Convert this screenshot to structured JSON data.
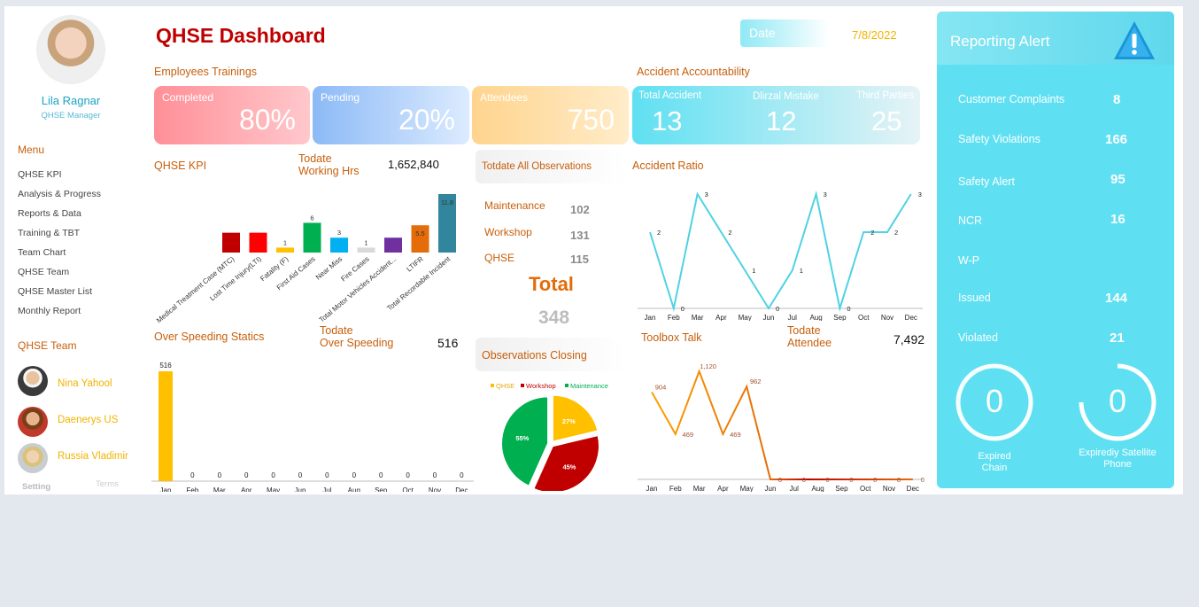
{
  "header": {
    "title": "QHSE Dashboard",
    "date_label": "Date",
    "date_value": "7/8/2022"
  },
  "user": {
    "name": "Lila Ragnar",
    "role": "QHSE Manager"
  },
  "menu": {
    "title": "Menu",
    "items": [
      "QHSE KPI",
      "Analysis & Progress",
      "Reports & Data",
      "Training & TBT",
      "Team Chart",
      "QHSE Team",
      "QHSE Master List",
      "Monthly Report"
    ]
  },
  "team": {
    "title": "QHSE Team",
    "members": [
      "Nina Yahool",
      "Daenerys US",
      "Russia  Vladimir"
    ]
  },
  "footer": {
    "setting": "Setting",
    "terms": "Terms"
  },
  "trainings": {
    "title": "Employees Trainings",
    "completed_label": "Completed",
    "completed_value": "80%",
    "pending_label": "Pending",
    "pending_value": "20%",
    "attendees_label": "Attendees",
    "attendees_value": "750"
  },
  "accident": {
    "title": "Accident Accountability",
    "total_label": "Total Accident",
    "total_value": "13",
    "mistake_label": "Dlirzal Mistake",
    "mistake_value": "12",
    "third_label": "Third Parties",
    "third_value": "25"
  },
  "kpi": {
    "title": "QHSE KPI",
    "working_label_1": "Todate",
    "working_label_2": "Working Hrs",
    "working_value": "1,652,840"
  },
  "observations": {
    "title": "Totdate All Observations",
    "rows": [
      {
        "label": "Maintenance",
        "value": "102"
      },
      {
        "label": "Workshop",
        "value": "131"
      },
      {
        "label": "QHSE",
        "value": "115"
      }
    ],
    "total_label": "Total",
    "total_value": "348",
    "closing_title": "Observations Closing"
  },
  "accident_ratio": {
    "title": "Accident Ratio"
  },
  "speeding": {
    "title": "Over Speeding Statics",
    "todate_label_1": "Todate",
    "todate_label_2": "Over Speeding",
    "todate_value": "516"
  },
  "toolbox": {
    "title": "Toolbox Talk",
    "todate_label_1": "Todate",
    "todate_label_2": "Attendee",
    "todate_value": "7,492"
  },
  "alerts": {
    "title": "Reporting Alert",
    "rows": [
      {
        "label": "Customer Complaints",
        "value": "8"
      },
      {
        "label": "Safety Violations",
        "value": "166"
      },
      {
        "label": "Safety Alert",
        "value": "95"
      },
      {
        "label": "NCR",
        "value": "16"
      },
      {
        "label": "W-P",
        "value": ""
      },
      {
        "label": "Issued",
        "value": "144"
      },
      {
        "label": "Violated",
        "value": "21"
      }
    ],
    "gauge1_value": "0",
    "gauge1_label_1": "Expired",
    "gauge1_label_2": "Chain",
    "gauge2_value": "0",
    "gauge2_label_1": "Expirediy Satellite",
    "gauge2_label_2": "Phone"
  },
  "chart_data": [
    {
      "type": "bar",
      "name": "QHSE KPI",
      "categories": [
        "Medical Treatment Case (MTC)",
        "Lost Time Injury(LTI)",
        "Fatality (F)",
        "First Aid Cases",
        "Near Miss",
        "Fire Cases",
        "Total Motor Vehicles Accident...",
        "LTIFR",
        "Total Recordable Incident"
      ],
      "values": [
        4,
        4,
        1,
        6,
        3,
        1,
        3,
        5.5,
        11.8
      ],
      "labels": [
        "",
        "",
        "1",
        "6",
        "3",
        "1",
        "",
        "5.5",
        "11.8"
      ],
      "colors": [
        "#c00000",
        "#ff0000",
        "#ffc000",
        "#00b050",
        "#00b0f0",
        "#d9d9d9",
        "#7030a0",
        "#e46c0a",
        "#31859c"
      ]
    },
    {
      "type": "line",
      "name": "Accident Ratio",
      "categories": [
        "Jan",
        "Feb",
        "Mar",
        "Apr",
        "May",
        "Jun",
        "Jul",
        "Aug",
        "Sep",
        "Oct",
        "Nov",
        "Dec"
      ],
      "values": [
        2,
        0,
        3,
        2,
        1,
        0,
        1,
        3,
        0,
        2,
        2,
        3
      ],
      "ylim": [
        0,
        3
      ]
    },
    {
      "type": "bar",
      "name": "Over Speeding Statics",
      "categories": [
        "Jan",
        "Feb",
        "Mar",
        "Apr",
        "May",
        "Jun",
        "Jul",
        "Aug",
        "Sep",
        "Oct",
        "Nov",
        "Dec"
      ],
      "values": [
        516,
        0,
        0,
        0,
        0,
        0,
        0,
        0,
        0,
        0,
        0,
        0
      ],
      "color": "#ffc000"
    },
    {
      "type": "pie",
      "name": "Observations Closing",
      "categories": [
        "QHSE",
        "Workshop",
        "Maintenance"
      ],
      "values": [
        27,
        45,
        55
      ],
      "labels": [
        "27%",
        "45%",
        "55%"
      ],
      "colors": [
        "#ffc000",
        "#c00000",
        "#00b050"
      ]
    },
    {
      "type": "line",
      "name": "Toolbox Talk",
      "categories": [
        "Jan",
        "Feb",
        "Mar",
        "Apr",
        "May",
        "Jun",
        "Jul",
        "Aug",
        "Sep",
        "Oct",
        "Nov",
        "Dec"
      ],
      "values": [
        904,
        469,
        1120,
        469,
        962,
        0,
        0,
        0,
        0,
        0,
        0,
        0
      ],
      "labels": [
        "904",
        "469",
        "1,120",
        "469",
        "962",
        "0",
        "0",
        "0",
        "0",
        "0",
        "0",
        "0"
      ]
    }
  ]
}
